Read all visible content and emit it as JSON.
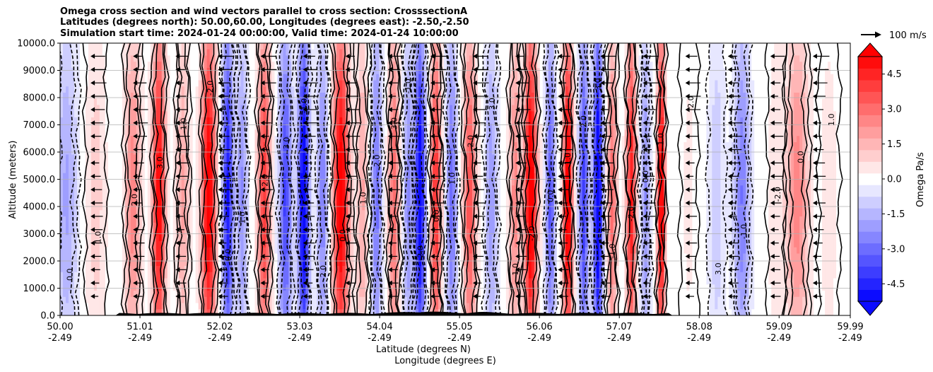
{
  "titles": [
    "Omega cross section and wind vectors parallel to cross section: CrosssectionA",
    "Latitudes (degrees north): 50.00,60.00, Longitudes (degrees east): -2.50,-2.50",
    "Simulation start time: 2024-01-24 00:00:00, Valid time: 2024-01-24 10:00:00"
  ],
  "chart_data": {
    "type": "heatmap",
    "xlabel_line1": "Latitude (degrees N)",
    "xlabel_line2": "Longitude (degrees E)",
    "ylabel": "Altitude (meters)",
    "ylim": [
      0,
      10000
    ],
    "y_ticks": [
      "0.0",
      "1000.0",
      "2000.0",
      "3000.0",
      "4000.0",
      "5000.0",
      "6000.0",
      "7000.0",
      "8000.0",
      "9000.0",
      "10000.0"
    ],
    "y_tick_values": [
      0,
      1000,
      2000,
      3000,
      4000,
      5000,
      6000,
      7000,
      8000,
      9000,
      10000
    ],
    "x_ticks_lat": [
      "50.00",
      "51.01",
      "52.02",
      "53.03",
      "54.04",
      "55.05",
      "56.06",
      "57.07",
      "58.08",
      "59.09",
      "59.99"
    ],
    "x_ticks_lon": [
      "-2.49",
      "-2.49",
      "-2.49",
      "-2.49",
      "-2.49",
      "-2.49",
      "-2.49",
      "-2.49",
      "-2.49",
      "-2.49",
      "-2.49"
    ],
    "x_tick_values": [
      50.0,
      51.01,
      52.02,
      53.03,
      54.04,
      55.05,
      56.06,
      57.07,
      58.08,
      59.09,
      59.99
    ],
    "xlim": [
      50.0,
      59.99
    ],
    "grid": "horizontal",
    "colormap": "bwr",
    "colorbar": {
      "label": "Omega Pa/s",
      "ticks": [
        "-4.5",
        "-3.0",
        "-1.5",
        "0.0",
        "1.5",
        "3.0",
        "4.5"
      ],
      "tick_values": [
        -4.5,
        -3.0,
        -1.5,
        0.0,
        1.5,
        3.0,
        4.5
      ],
      "range": [
        -5.25,
        5.25
      ],
      "extend": "both"
    },
    "vector_key": {
      "label": "100 m/s"
    },
    "omega_bands": [
      {
        "lat": 50.08,
        "value": -1.6,
        "width": 0.14
      },
      {
        "lat": 50.45,
        "value": 0.9,
        "width": 0.12
      },
      {
        "lat": 50.92,
        "value": 2.2,
        "width": 0.1
      },
      {
        "lat": 51.25,
        "value": 4.6,
        "width": 0.08
      },
      {
        "lat": 51.55,
        "value": 1.6,
        "width": 0.08
      },
      {
        "lat": 51.88,
        "value": 5.0,
        "width": 0.09
      },
      {
        "lat": 52.12,
        "value": -4.2,
        "width": 0.07
      },
      {
        "lat": 52.3,
        "value": -2.0,
        "width": 0.07
      },
      {
        "lat": 52.58,
        "value": 3.6,
        "width": 0.08
      },
      {
        "lat": 52.85,
        "value": -3.4,
        "width": 0.08
      },
      {
        "lat": 53.08,
        "value": -5.0,
        "width": 0.07
      },
      {
        "lat": 53.32,
        "value": -2.3,
        "width": 0.07
      },
      {
        "lat": 53.55,
        "value": 5.0,
        "width": 0.1
      },
      {
        "lat": 53.82,
        "value": 1.6,
        "width": 0.08
      },
      {
        "lat": 54.0,
        "value": -2.6,
        "width": 0.07
      },
      {
        "lat": 54.22,
        "value": 2.8,
        "width": 0.07
      },
      {
        "lat": 54.4,
        "value": -2.0,
        "width": 0.06
      },
      {
        "lat": 54.55,
        "value": -4.8,
        "width": 0.07
      },
      {
        "lat": 54.75,
        "value": 3.8,
        "width": 0.07
      },
      {
        "lat": 54.95,
        "value": -2.6,
        "width": 0.07
      },
      {
        "lat": 55.18,
        "value": 3.2,
        "width": 0.08
      },
      {
        "lat": 55.45,
        "value": -1.8,
        "width": 0.08
      },
      {
        "lat": 55.75,
        "value": 2.2,
        "width": 0.07
      },
      {
        "lat": 55.95,
        "value": 5.2,
        "width": 0.08
      },
      {
        "lat": 56.2,
        "value": -3.0,
        "width": 0.06
      },
      {
        "lat": 56.42,
        "value": 5.2,
        "width": 0.06
      },
      {
        "lat": 56.62,
        "value": -3.6,
        "width": 0.06
      },
      {
        "lat": 56.8,
        "value": -5.2,
        "width": 0.06
      },
      {
        "lat": 56.98,
        "value": 2.6,
        "width": 0.06
      },
      {
        "lat": 57.22,
        "value": 4.2,
        "width": 0.06
      },
      {
        "lat": 57.4,
        "value": -2.0,
        "width": 0.06
      },
      {
        "lat": 57.6,
        "value": 5.0,
        "width": 0.05
      },
      {
        "lat": 57.95,
        "value": 0.3,
        "width": 0.1
      },
      {
        "lat": 58.3,
        "value": -1.0,
        "width": 0.1
      },
      {
        "lat": 58.62,
        "value": -2.4,
        "width": 0.1
      },
      {
        "lat": 59.05,
        "value": 0.5,
        "width": 0.1
      },
      {
        "lat": 59.32,
        "value": 2.2,
        "width": 0.14
      },
      {
        "lat": 59.72,
        "value": 0.4,
        "width": 0.12
      }
    ],
    "contour_labels": [
      "0.0",
      "1.0",
      "2.0",
      "3.0",
      "-1.0",
      "-2.0"
    ]
  }
}
